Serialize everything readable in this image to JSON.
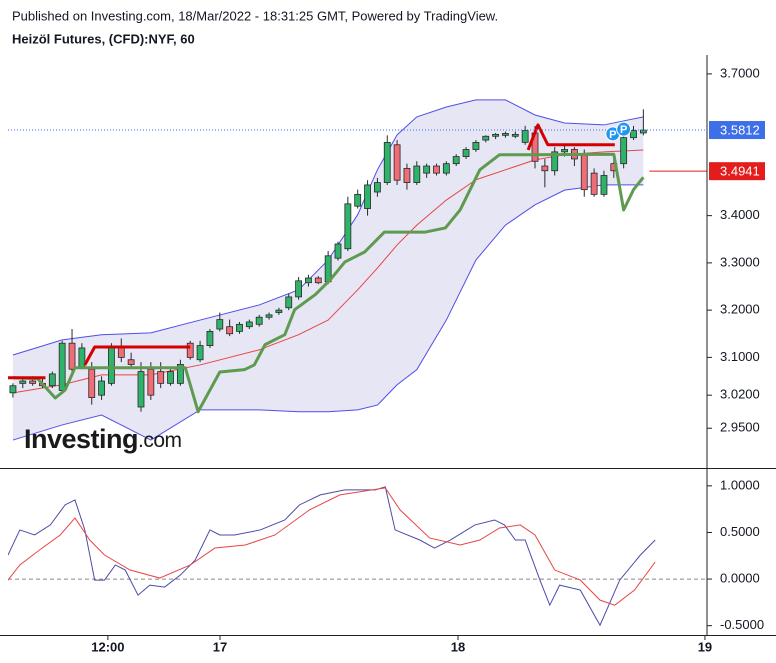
{
  "header": {
    "source": "Published on Investing.com, 18/Mar/2022 - 18:31:25 GMT, Powered by TradingView.",
    "instrument": "Heizöl Futures, (CFD):NYF, 60"
  },
  "watermark": {
    "brand": "Investing",
    "suffix": ".com"
  },
  "chart_data": [
    {
      "type": "candlestick",
      "categories": [
        null,
        null,
        null,
        null,
        null,
        null,
        null,
        null,
        null,
        null,
        null,
        null,
        null,
        null,
        null,
        null,
        null,
        null,
        null,
        null,
        null,
        null,
        null,
        null,
        null,
        null,
        null,
        null,
        null,
        null,
        null,
        null,
        null,
        null,
        null,
        null,
        null,
        null,
        null,
        null,
        null,
        null,
        null,
        null,
        null,
        null,
        null,
        null,
        null,
        null,
        null,
        null,
        null,
        null,
        null,
        null,
        null,
        null,
        null,
        null,
        null,
        null,
        null,
        null,
        null
      ],
      "open": [
        3.025,
        3.045,
        3.05,
        3.045,
        3.04,
        3.03,
        3.13,
        3.08,
        3.075,
        3.02,
        3.045,
        3.12,
        3.095,
        2.995,
        3.075,
        3.07,
        3.045,
        3.045,
        3.13,
        3.095,
        3.125,
        3.16,
        3.165,
        3.155,
        3.165,
        3.17,
        3.185,
        3.195,
        3.205,
        3.228,
        3.258,
        3.268,
        3.26,
        3.31,
        3.33,
        3.42,
        3.415,
        3.45,
        3.47,
        3.55,
        3.5,
        3.47,
        3.49,
        3.505,
        3.49,
        3.51,
        3.525,
        3.54,
        3.56,
        3.568,
        3.57,
        3.568,
        3.555,
        3.575,
        3.505,
        3.495,
        3.535,
        3.54,
        3.53,
        3.49,
        3.445,
        3.51,
        3.51,
        3.565,
        3.575
      ],
      "high": [
        3.045,
        3.055,
        3.06,
        3.055,
        3.07,
        3.135,
        3.16,
        3.13,
        3.09,
        3.06,
        3.13,
        3.14,
        3.11,
        3.09,
        3.09,
        3.09,
        3.075,
        3.095,
        3.135,
        3.135,
        3.16,
        3.195,
        3.18,
        3.175,
        3.18,
        3.19,
        3.195,
        3.205,
        3.235,
        3.27,
        3.275,
        3.272,
        3.325,
        3.345,
        3.44,
        3.455,
        3.475,
        3.48,
        3.57,
        3.56,
        3.51,
        3.515,
        3.51,
        3.51,
        3.515,
        3.53,
        3.545,
        3.56,
        3.57,
        3.575,
        3.578,
        3.578,
        3.59,
        3.59,
        3.52,
        3.545,
        3.55,
        3.545,
        3.54,
        3.5,
        3.495,
        3.53,
        3.58,
        3.59,
        3.625
      ],
      "low": [
        3.015,
        3.035,
        3.04,
        3.035,
        3.035,
        3.025,
        3.07,
        3.075,
        3.0,
        3.01,
        3.04,
        3.09,
        3.08,
        2.985,
        3.01,
        3.035,
        3.04,
        3.04,
        3.095,
        3.09,
        3.12,
        3.155,
        3.145,
        3.15,
        3.16,
        3.165,
        3.18,
        3.19,
        3.2,
        3.222,
        3.25,
        3.255,
        3.255,
        3.305,
        3.325,
        3.415,
        3.4,
        3.44,
        3.465,
        3.465,
        3.455,
        3.465,
        3.48,
        3.485,
        3.485,
        3.505,
        3.52,
        3.535,
        3.555,
        3.562,
        3.565,
        3.564,
        3.55,
        3.5,
        3.46,
        3.485,
        3.525,
        3.505,
        3.44,
        3.44,
        3.44,
        3.48,
        3.5,
        3.56,
        3.57
      ],
      "close": [
        3.04,
        3.05,
        3.045,
        3.04,
        3.065,
        3.13,
        3.075,
        3.12,
        3.015,
        3.05,
        3.12,
        3.1,
        3.085,
        3.07,
        3.02,
        3.045,
        3.07,
        3.085,
        3.1,
        3.125,
        3.155,
        3.18,
        3.15,
        3.17,
        3.175,
        3.185,
        3.19,
        3.2,
        3.228,
        3.262,
        3.268,
        3.258,
        3.315,
        3.34,
        3.425,
        3.445,
        3.465,
        3.47,
        3.555,
        3.475,
        3.47,
        3.505,
        3.505,
        3.49,
        3.51,
        3.525,
        3.54,
        3.555,
        3.568,
        3.572,
        3.574,
        3.572,
        3.58,
        3.515,
        3.495,
        3.535,
        3.54,
        3.52,
        3.455,
        3.445,
        3.485,
        3.495,
        3.565,
        3.58,
        3.581
      ],
      "up_color": "#2fb36b",
      "down_color": "#ee6d76",
      "outline_color": "#2a2a2a",
      "bands": {
        "fill": "#e6e6f4",
        "color": "#4f4fe8",
        "x": [
          0,
          5,
          9,
          14,
          19,
          25,
          29,
          32,
          35,
          37,
          39,
          41,
          44,
          47,
          50,
          53,
          56,
          60,
          64
        ],
        "upper": [
          3.105,
          3.137,
          3.148,
          3.152,
          3.179,
          3.211,
          3.243,
          3.306,
          3.402,
          3.497,
          3.571,
          3.609,
          3.63,
          3.645,
          3.645,
          3.613,
          3.596,
          3.592,
          3.609
        ],
        "lower": [
          2.925,
          2.957,
          2.978,
          2.925,
          2.989,
          2.989,
          2.985,
          2.985,
          2.989,
          2.999,
          3.042,
          3.074,
          3.179,
          3.306,
          3.38,
          3.423,
          3.454,
          3.465,
          3.465
        ]
      },
      "overlays": [
        {
          "color": "#e84545",
          "width": 1,
          "x": [
            0,
            5,
            9,
            14,
            19,
            25,
            29,
            32,
            35,
            37,
            39,
            41,
            44,
            47,
            50,
            53,
            56,
            60,
            64
          ],
          "values": [
            3.025,
            3.042,
            3.063,
            3.063,
            3.084,
            3.116,
            3.148,
            3.179,
            3.243,
            3.289,
            3.338,
            3.38,
            3.433,
            3.476,
            3.497,
            3.518,
            3.529,
            3.535,
            3.539
          ]
        },
        {
          "color": "#5e9a50",
          "width": 3,
          "x": [
            0,
            2.5,
            4.3,
            5.3,
            6.3,
            8,
            17.5,
            18.8,
            21,
            23.5,
            24.5,
            25.6,
            27.6,
            28.6,
            30.7,
            32.2,
            33.7,
            35.7,
            37.7,
            41.8,
            43.9,
            45.4,
            47.4,
            49.4,
            52.5,
            61,
            62,
            63,
            64
          ],
          "values": [
            3.057,
            3.055,
            3.014,
            3.031,
            3.078,
            3.078,
            3.078,
            2.985,
            3.069,
            3.074,
            3.084,
            3.127,
            3.148,
            3.201,
            3.233,
            3.264,
            3.302,
            3.323,
            3.365,
            3.365,
            3.374,
            3.412,
            3.497,
            3.529,
            3.529,
            3.53,
            3.412,
            3.455,
            3.481
          ]
        },
        {
          "color": "#d40000",
          "width": 3,
          "x": [
            -0.5,
            3.3,
            null,
            7.3,
            8.3,
            18.0,
            null,
            52.3,
            53.3,
            54.3,
            61.1
          ],
          "values": [
            3.057,
            3.057,
            null,
            3.084,
            3.122,
            3.122,
            null,
            3.539,
            3.592,
            3.55,
            3.55
          ]
        }
      ],
      "price_lines": [
        {
          "value": 3.5812,
          "color": "#3d6fe8",
          "style": "dotted"
        },
        {
          "value": 3.4941,
          "color": "#e31c1c",
          "style": "solid"
        }
      ],
      "markers": [
        {
          "x": 60.9,
          "y": 3.573,
          "label": "P"
        },
        {
          "x": 62.0,
          "y": 3.583,
          "label": "P"
        }
      ],
      "marker_color": "#2196f3",
      "xlim": [
        -0.5,
        70.46
      ],
      "ylim": [
        2.868,
        3.74
      ],
      "yticks": [
        {
          "value": 3.7,
          "label": "3.7000"
        },
        {
          "value": 3.4,
          "label": "3.4000"
        },
        {
          "value": 3.3,
          "label": "3.3000"
        },
        {
          "value": 3.2,
          "label": "3.2000"
        },
        {
          "value": 3.1,
          "label": "3.1000"
        },
        {
          "value": 3.02,
          "label": "3.0200"
        },
        {
          "value": 2.95,
          "label": "2.9500"
        }
      ]
    },
    {
      "type": "line",
      "series": [
        {
          "color": "#4b4ba8",
          "x": [
            -0.5,
            0.7,
            2.2,
            3.8,
            5.3,
            6.3,
            7.3,
            8.3,
            9.3,
            10.4,
            11.4,
            12.7,
            13.9,
            15.4,
            17.0,
            18.5,
            20.0,
            21.0,
            22.5,
            25.1,
            27.6,
            29.1,
            31.2,
            33.7,
            36.8,
            37.8,
            38.8,
            41.3,
            42.8,
            44.4,
            46.9,
            48.9,
            49.9,
            51.0,
            52.0,
            53.5,
            54.5,
            55.5,
            57.6,
            59.6,
            61.6,
            63.7,
            65.2
          ],
          "values": [
            0.258,
            0.527,
            0.473,
            0.581,
            0.796,
            0.849,
            0.527,
            -0.011,
            -0.011,
            0.151,
            0.097,
            -0.172,
            -0.065,
            -0.086,
            0.043,
            0.204,
            0.527,
            0.473,
            0.473,
            0.527,
            0.634,
            0.796,
            0.903,
            0.957,
            0.957,
            0.989,
            0.527,
            0.419,
            0.333,
            0.419,
            0.581,
            0.634,
            0.581,
            0.419,
            0.419,
            -0.011,
            -0.28,
            -0.065,
            -0.118,
            -0.495,
            -0.011,
            0.258,
            0.419
          ]
        },
        {
          "color": "#e84545",
          "x": [
            -0.5,
            0.7,
            2.7,
            4.8,
            6.3,
            7.8,
            9.3,
            11.9,
            14.9,
            18.0,
            20.5,
            23.6,
            26.6,
            30.1,
            33.2,
            37.8,
            39.3,
            42.3,
            45.4,
            47.4,
            49.4,
            51.5,
            53.0,
            55.0,
            57.6,
            59.6,
            61.1,
            63.1,
            65.2
          ],
          "values": [
            -0.011,
            0.151,
            0.312,
            0.473,
            0.656,
            0.419,
            0.258,
            0.097,
            0.011,
            0.151,
            0.333,
            0.366,
            0.473,
            0.742,
            0.903,
            0.978,
            0.742,
            0.441,
            0.366,
            0.419,
            0.548,
            0.581,
            0.473,
            0.097,
            -0.011,
            -0.226,
            -0.28,
            -0.118,
            0.183
          ]
        }
      ],
      "reference_line": 0,
      "xlim": [
        -0.5,
        70.46
      ],
      "ylim": [
        -0.6,
        1.17
      ],
      "yticks": [
        {
          "value": 1,
          "label": "1.0000"
        },
        {
          "value": 0.5,
          "label": "0.5000"
        },
        {
          "value": 0,
          "label": "0.0000"
        },
        {
          "value": -0.5,
          "label": "-0.5000"
        }
      ],
      "xticks": [
        {
          "value": 9.64,
          "label": "12:00"
        },
        {
          "value": 21.02,
          "label": "17"
        },
        {
          "value": 45.18,
          "label": "18"
        },
        {
          "value": 70.25,
          "label": "19"
        }
      ]
    }
  ]
}
